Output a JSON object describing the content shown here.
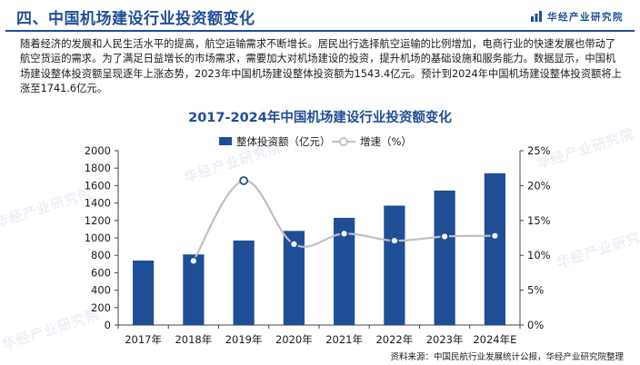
{
  "header": {
    "title": "四、中国机场建设行业投资额变化",
    "brand": "华经产业研究院"
  },
  "intro": "随着经济的发展和人民生活水平的提高，航空运输需求不断增长。居民出行选择航空运输的比例增加，电商行业的快速发展也带动了航空货运的需求。为了满足日益增长的市场需求，需要加大对机场建设的投资，提升机场的基础设施和服务能力。数据显示，中国机场建设整体投资额呈现逐年上涨态势，2023年中国机场建设整体投资额为1543.4亿元。预计到2024年中国机场建设整体投资额将上涨至1741.6亿元。",
  "watermark": "华经产业研究院",
  "footer": {
    "source": "资料来源：中国民航行业发展统计公报，华经产业研究院整理"
  },
  "colors": {
    "brand": "#1f4e97",
    "bar": "#1f4e97",
    "line": "#c0c0c0",
    "marker_edge": "#1f4e97"
  },
  "chart_data": {
    "type": "bar",
    "title": "2017-2024年中国机场建设行业投资额变化",
    "categories": [
      "2017年",
      "2018年",
      "2019年",
      "2020年",
      "2021年",
      "2022年",
      "2023年",
      "2024年E"
    ],
    "series": [
      {
        "name": "整体投资额（亿元）",
        "type": "bar",
        "axis": "left",
        "values": [
          740,
          810,
          970,
          1080,
          1230,
          1370,
          1543.4,
          1741.6
        ]
      },
      {
        "name": "增速（%）",
        "type": "line",
        "axis": "right",
        "values": [
          null,
          9.2,
          20.7,
          11.6,
          13.1,
          12.1,
          12.7,
          12.8
        ]
      }
    ],
    "y_left": {
      "min": 0,
      "max": 2000,
      "step": 200,
      "ticks": [
        "0",
        "200",
        "400",
        "600",
        "800",
        "1000",
        "1200",
        "1400",
        "1600",
        "1800",
        "2000"
      ]
    },
    "y_right": {
      "min": 0,
      "max": 25,
      "step": 5,
      "ticks": [
        "0%",
        "5%",
        "10%",
        "15%",
        "20%",
        "25%"
      ]
    },
    "grid": false,
    "legend": "top-center"
  }
}
